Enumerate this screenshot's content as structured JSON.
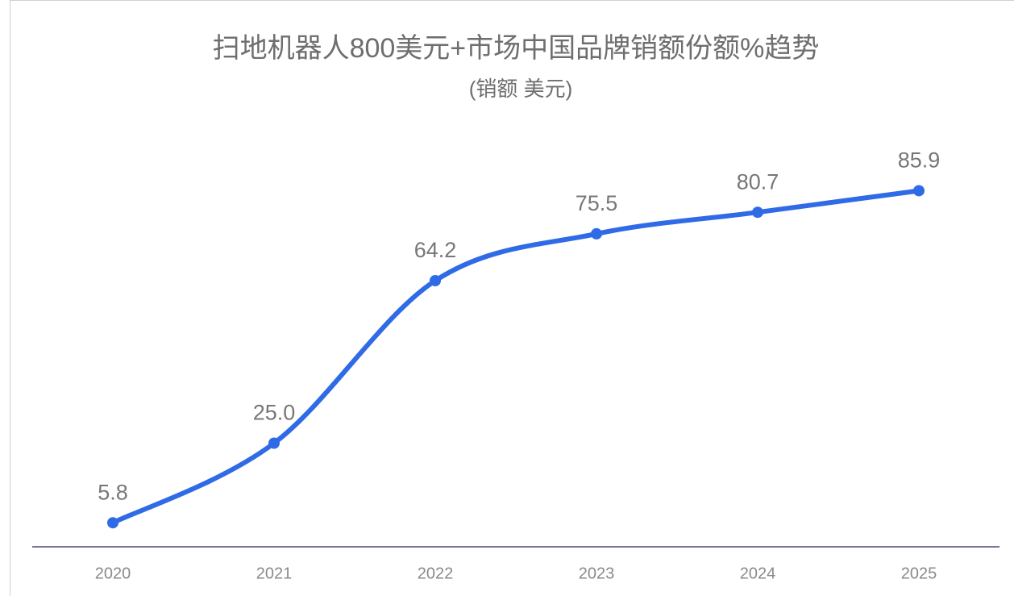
{
  "chart_data": {
    "type": "line",
    "title": "扫地机器人800美元+市场中国品牌销额份额%趋势",
    "subtitle": "(销额 美元)",
    "categories": [
      "2020",
      "2021",
      "2022",
      "2023",
      "2024",
      "2025"
    ],
    "series": [
      {
        "name": "中国品牌销额份额%",
        "color": "#2f6be6",
        "values": [
          5.8,
          25.0,
          64.2,
          75.5,
          80.7,
          85.9
        ],
        "value_labels": [
          "5.8",
          "25.0",
          "64.2",
          "75.5",
          "80.7",
          "85.9"
        ]
      }
    ],
    "ylim": [
      0,
      100
    ],
    "smooth": true
  }
}
